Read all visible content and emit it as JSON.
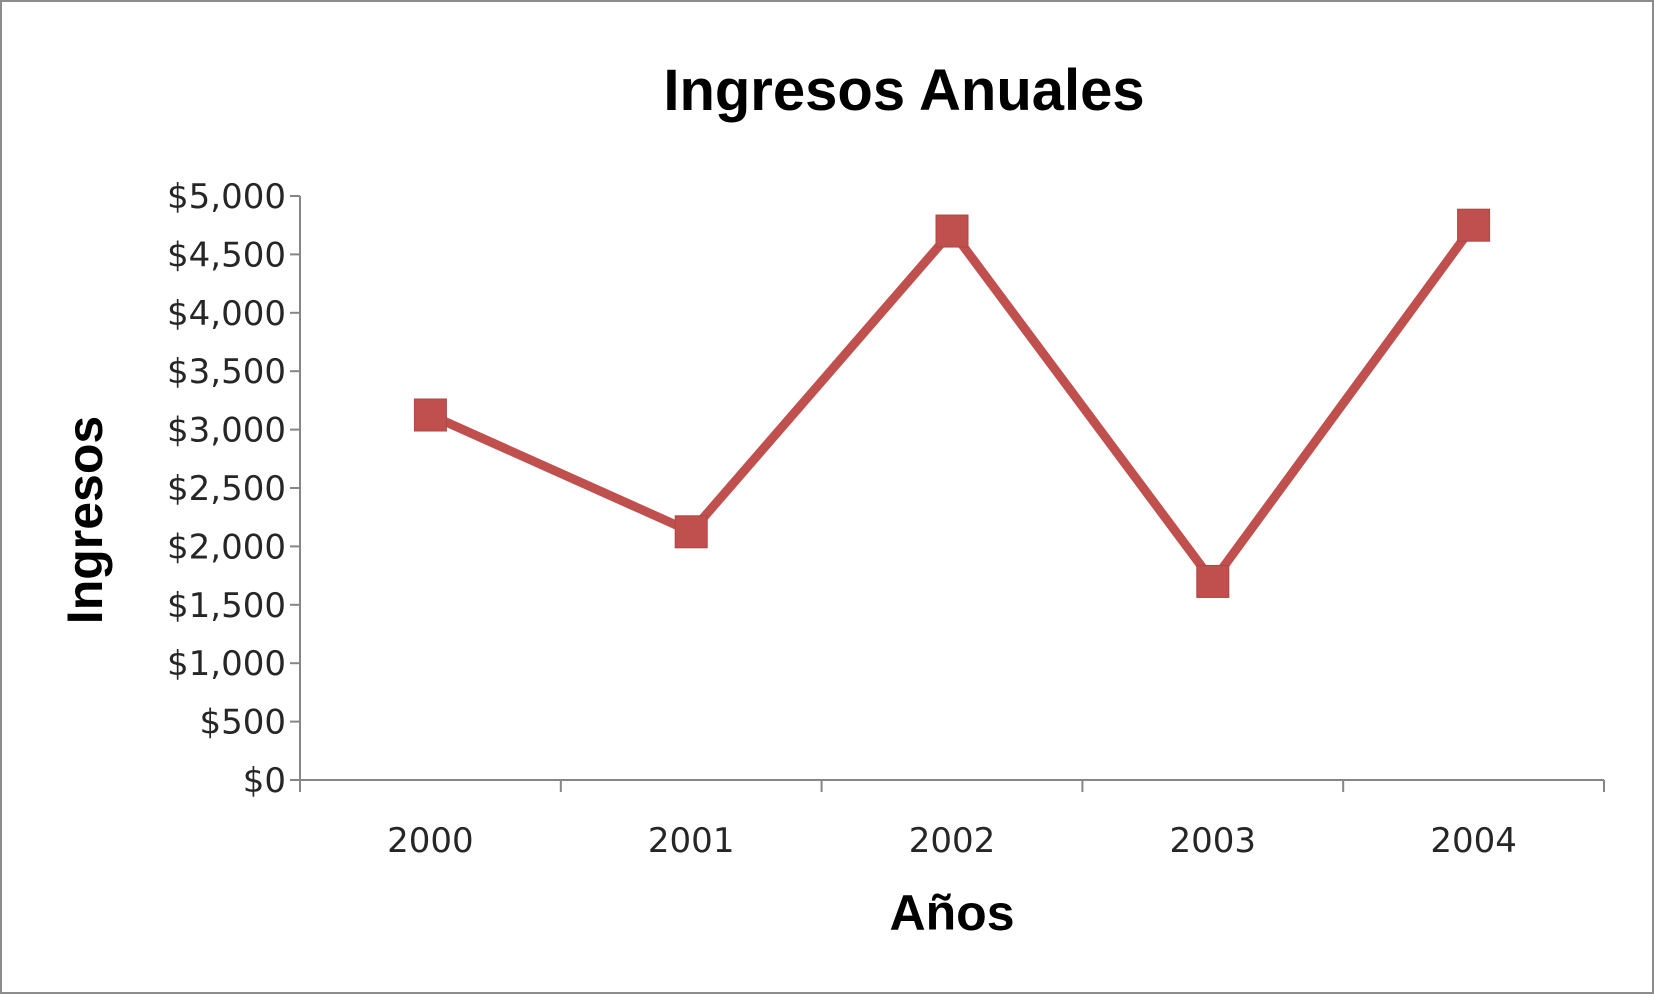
{
  "chart_data": {
    "type": "line",
    "title": "Ingresos Anuales",
    "xlabel": "Años",
    "ylabel": "Ingresos",
    "categories": [
      "2000",
      "2001",
      "2002",
      "2003",
      "2004"
    ],
    "series": [
      {
        "values": [
          3125,
          2125,
          4700,
          1700,
          4750
        ],
        "color": "#c0504d",
        "marker": "square"
      }
    ],
    "ylim": [
      0,
      5000
    ],
    "yticks": [
      0,
      500,
      1000,
      1500,
      2000,
      2500,
      3000,
      3500,
      4000,
      4500,
      5000
    ],
    "ytick_labels": [
      "$0",
      "$500",
      "$1,000",
      "$1,500",
      "$2,000",
      "$2,500",
      "$3,000",
      "$3,500",
      "$4,000",
      "$4,500",
      "$5,000"
    ],
    "grid": false,
    "legend": "none",
    "axis_color": "#868686"
  }
}
